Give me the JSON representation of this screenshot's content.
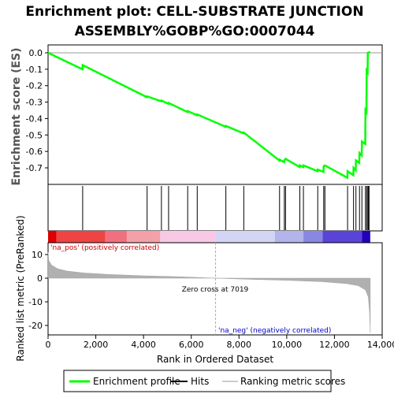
{
  "chart_data": {
    "type": "line",
    "title_line1": "Enrichment plot: CELL-SUBSTRATE JUNCTION",
    "title_line2": "ASSEMBLY%GOBP%GO:0007044",
    "es_ylabel": "Enrichment score (ES)",
    "metric_ylabel": "Ranked list metric (PreRanked)",
    "xlabel": "Rank in Ordered Dataset",
    "xlim": [
      0,
      14000
    ],
    "es_ylim": [
      -0.8,
      0.03
    ],
    "es_yticks": [
      "0.0",
      "-0.1",
      "-0.2",
      "-0.3",
      "-0.4",
      "-0.5",
      "-0.6",
      "-0.7"
    ],
    "metric_ylim": [
      -24,
      15
    ],
    "metric_yticks": [
      "10",
      "0",
      "-10",
      "-20"
    ],
    "xticks": [
      "0",
      "2,000",
      "4,000",
      "6,000",
      "8,000",
      "10,000",
      "12,000",
      "14,000"
    ],
    "n_genes": 13500,
    "zero_cross": 7019,
    "zero_cross_label": "Zero cross at 7019",
    "pos_label": "'na_pos' (positively correlated)",
    "neg_label": "'na_neg' (negatively correlated)",
    "hits": [
      1450,
      4150,
      4750,
      5050,
      5850,
      6250,
      7450,
      8200,
      9700,
      9900,
      9950,
      10550,
      10700,
      11300,
      11550,
      11600,
      12550,
      12800,
      12900,
      13050,
      13150,
      13300,
      13350,
      13400,
      13420,
      13450
    ],
    "es_curve": [
      [
        0,
        0.0
      ],
      [
        1440,
        -0.1
      ],
      [
        1450,
        -0.075
      ],
      [
        4140,
        -0.27
      ],
      [
        4150,
        -0.265
      ],
      [
        4740,
        -0.295
      ],
      [
        4750,
        -0.29
      ],
      [
        5040,
        -0.31
      ],
      [
        5050,
        -0.305
      ],
      [
        5840,
        -0.36
      ],
      [
        5850,
        -0.355
      ],
      [
        6240,
        -0.38
      ],
      [
        6250,
        -0.375
      ],
      [
        7440,
        -0.45
      ],
      [
        7450,
        -0.445
      ],
      [
        8190,
        -0.49
      ],
      [
        8200,
        -0.485
      ],
      [
        9690,
        -0.655
      ],
      [
        9700,
        -0.65
      ],
      [
        9890,
        -0.665
      ],
      [
        9900,
        -0.655
      ],
      [
        9950,
        -0.645
      ],
      [
        10540,
        -0.695
      ],
      [
        10550,
        -0.685
      ],
      [
        10690,
        -0.695
      ],
      [
        10700,
        -0.685
      ],
      [
        11290,
        -0.72
      ],
      [
        11300,
        -0.71
      ],
      [
        11540,
        -0.725
      ],
      [
        11550,
        -0.69
      ],
      [
        11600,
        -0.685
      ],
      [
        12540,
        -0.76
      ],
      [
        12550,
        -0.72
      ],
      [
        12790,
        -0.745
      ],
      [
        12800,
        -0.7
      ],
      [
        12890,
        -0.715
      ],
      [
        12900,
        -0.655
      ],
      [
        13040,
        -0.67
      ],
      [
        13050,
        -0.61
      ],
      [
        13140,
        -0.625
      ],
      [
        13150,
        -0.54
      ],
      [
        13290,
        -0.555
      ],
      [
        13300,
        -0.35
      ],
      [
        13340,
        -0.36
      ],
      [
        13350,
        -0.11
      ],
      [
        13390,
        -0.12
      ],
      [
        13400,
        0.0
      ],
      [
        13500,
        0.005
      ]
    ],
    "metric_curve": [
      [
        0,
        11
      ],
      [
        30,
        7.5
      ],
      [
        150,
        5.5
      ],
      [
        400,
        4
      ],
      [
        800,
        3
      ],
      [
        1500,
        2.2
      ],
      [
        2500,
        1.6
      ],
      [
        4000,
        1.0
      ],
      [
        5500,
        0.6
      ],
      [
        7019,
        0.0
      ],
      [
        8500,
        -0.5
      ],
      [
        10000,
        -0.9
      ],
      [
        11500,
        -1.5
      ],
      [
        12500,
        -2.3
      ],
      [
        13000,
        -3.2
      ],
      [
        13300,
        -5
      ],
      [
        13420,
        -8
      ],
      [
        13470,
        -14
      ],
      [
        13500,
        -23
      ]
    ],
    "bar_segments": [
      {
        "from": 0,
        "to": 350,
        "color": "#dd0000"
      },
      {
        "from": 350,
        "to": 2400,
        "color": "#ee4444"
      },
      {
        "from": 2400,
        "to": 3300,
        "color": "#f07080"
      },
      {
        "from": 3300,
        "to": 4700,
        "color": "#f4a0a8"
      },
      {
        "from": 4700,
        "to": 7019,
        "color": "#f8c8e4"
      },
      {
        "from": 7019,
        "to": 9500,
        "color": "#d4d4f4"
      },
      {
        "from": 9500,
        "to": 10700,
        "color": "#b4b4ec"
      },
      {
        "from": 10700,
        "to": 11500,
        "color": "#8888e0"
      },
      {
        "from": 11500,
        "to": 13150,
        "color": "#5a44d8"
      },
      {
        "from": 13150,
        "to": 13500,
        "color": "#2200bb"
      }
    ],
    "colors": {
      "es_line": "#00ff00",
      "hit": "#000000",
      "metric_fill": "#b0b0b0",
      "pos_text": "#cc0000",
      "neg_text": "#0000cc"
    },
    "legend": [
      {
        "label": "Enrichment profile",
        "color": "#00ff00"
      },
      {
        "label": "Hits",
        "color": "#000000"
      },
      {
        "label": "Ranking metric scores",
        "color": "#cccccc"
      }
    ]
  }
}
